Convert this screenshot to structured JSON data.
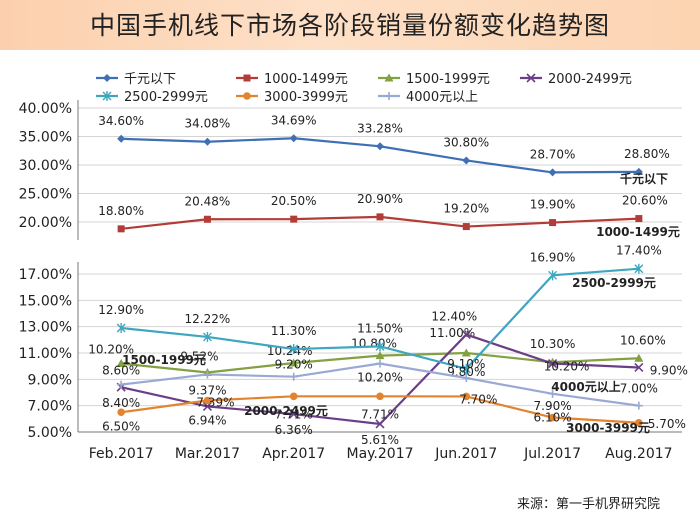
{
  "title": "中国手机线下市场各阶段销量份额变化趋势图",
  "source": "来源：第一手机界研究院",
  "chart_data": [
    {
      "type": "line",
      "panel": "upper",
      "categories": [
        "Feb.2017",
        "Mar.2017",
        "Apr.2017",
        "May.2017",
        "Jun.2017",
        "Jul.2017",
        "Aug.2017"
      ],
      "ylim": [
        20.0,
        40.0
      ],
      "yticks": [
        "20.00%",
        "25.00%",
        "30.00%",
        "35.00%",
        "40.00%"
      ],
      "grid": true,
      "series": [
        {
          "name": "千元以下",
          "color": "#3f70b5",
          "marker": "diamond",
          "values": [
            34.6,
            34.08,
            34.69,
            33.28,
            30.8,
            28.7,
            28.8
          ],
          "labels": [
            "34.60%",
            "34.08%",
            "34.69%",
            "33.28%",
            "30.80%",
            "28.70%",
            "28.80%"
          ],
          "end_label": "千元以下"
        },
        {
          "name": "1000-1499元",
          "color": "#b23c37",
          "marker": "square",
          "values": [
            18.8,
            20.48,
            20.5,
            20.9,
            19.2,
            19.9,
            20.6
          ],
          "labels": [
            "18.80%",
            "20.48%",
            "20.50%",
            "20.90%",
            "19.20%",
            "19.90%",
            "20.60%"
          ],
          "end_label": "1000-1499元"
        }
      ]
    },
    {
      "type": "line",
      "panel": "lower",
      "categories": [
        "Feb.2017",
        "Mar.2017",
        "Apr.2017",
        "May.2017",
        "Jun.2017",
        "Jul.2017",
        "Aug.2017"
      ],
      "ylim": [
        5.0,
        17.0
      ],
      "yticks": [
        "5.00%",
        "7.00%",
        "9.00%",
        "11.00%",
        "13.00%",
        "15.00%",
        "17.00%"
      ],
      "grid": true,
      "series": [
        {
          "name": "1500-1999元",
          "color": "#82a140",
          "marker": "triangle",
          "values": [
            10.2,
            9.52,
            10.24,
            10.8,
            11.0,
            10.3,
            10.6
          ],
          "labels": [
            "10.20%",
            "9.52%",
            "10.24%",
            "10.80%",
            "11.00%",
            "10.30%",
            "10.60%"
          ],
          "end_label": "1500-1999元"
        },
        {
          "name": "2000-2499元",
          "color": "#6b3f88",
          "marker": "x",
          "values": [
            8.4,
            6.94,
            6.36,
            5.61,
            12.4,
            10.2,
            9.9
          ],
          "labels": [
            "8.40%",
            "6.94%",
            "6.36%",
            "5.61%",
            "12.40%",
            "10.20%",
            "9.90%"
          ],
          "end_label": "2000-2499元"
        },
        {
          "name": "2500-2999元",
          "color": "#3fa6c0",
          "marker": "asterisk",
          "values": [
            12.9,
            12.22,
            11.3,
            11.5,
            9.8,
            16.9,
            17.4
          ],
          "labels": [
            "12.90%",
            "12.22%",
            "11.30%",
            "11.50%",
            "9.80%",
            "16.90%",
            "17.40%"
          ],
          "end_label": "2500-2999元"
        },
        {
          "name": "3000-3999元",
          "color": "#e2842d",
          "marker": "circle",
          "values": [
            6.5,
            7.39,
            7.71,
            7.71,
            7.7,
            6.1,
            5.7
          ],
          "labels": [
            "6.50%",
            "7.39%",
            "7.71%",
            "7.71%",
            "7.70%",
            "6.10%",
            "5.70%"
          ],
          "end_label": "3000-3999元"
        },
        {
          "name": "4000元以上",
          "color": "#9aa9d4",
          "marker": "plus",
          "values": [
            8.6,
            9.37,
            9.2,
            10.2,
            9.1,
            7.9,
            7.0
          ],
          "labels": [
            "8.60%",
            "9.37%",
            "9.20%",
            "10.20%",
            "9.10%",
            "7.90%",
            "7.00%"
          ],
          "end_label": "4000元以上"
        }
      ]
    }
  ],
  "legend": [
    {
      "name": "千元以下",
      "color": "#3f70b5",
      "marker": "diamond"
    },
    {
      "name": "1000-1499元",
      "color": "#b23c37",
      "marker": "square"
    },
    {
      "name": "1500-1999元",
      "color": "#82a140",
      "marker": "triangle"
    },
    {
      "name": "2000-2499元",
      "color": "#6b3f88",
      "marker": "x"
    },
    {
      "name": "2500-2999元",
      "color": "#3fa6c0",
      "marker": "asterisk"
    },
    {
      "name": "3000-3999元",
      "color": "#e2842d",
      "marker": "circle"
    },
    {
      "name": "4000元以上",
      "color": "#9aa9d4",
      "marker": "plus"
    }
  ]
}
